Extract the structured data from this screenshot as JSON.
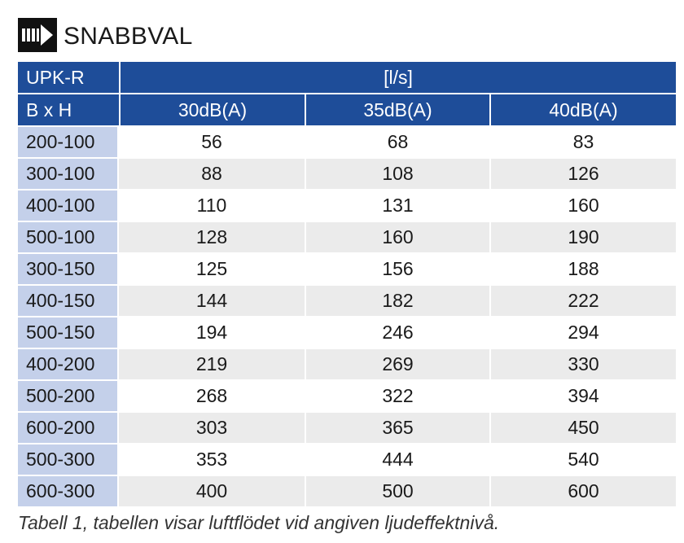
{
  "heading": {
    "logo_icon": "quick-select-arrow-icon",
    "title": "SNABBVAL"
  },
  "table": {
    "header_row1": {
      "model": "UPK-R",
      "unit": "[l/s]"
    },
    "header_row2": {
      "dim_label": "B x H",
      "levels": [
        "30dB(A)",
        "35dB(A)",
        "40dB(A)"
      ]
    },
    "rows": [
      {
        "size": "200-100",
        "v30": "56",
        "v35": "68",
        "v40": "83"
      },
      {
        "size": "300-100",
        "v30": "88",
        "v35": "108",
        "v40": "126"
      },
      {
        "size": "400-100",
        "v30": "110",
        "v35": "131",
        "v40": "160"
      },
      {
        "size": "500-100",
        "v30": "128",
        "v35": "160",
        "v40": "190"
      },
      {
        "size": "300-150",
        "v30": "125",
        "v35": "156",
        "v40": "188"
      },
      {
        "size": "400-150",
        "v30": "144",
        "v35": "182",
        "v40": "222"
      },
      {
        "size": "500-150",
        "v30": "194",
        "v35": "246",
        "v40": "294"
      },
      {
        "size": "400-200",
        "v30": "219",
        "v35": "269",
        "v40": "330"
      },
      {
        "size": "500-200",
        "v30": "268",
        "v35": "322",
        "v40": "394"
      },
      {
        "size": "600-200",
        "v30": "303",
        "v35": "365",
        "v40": "450"
      },
      {
        "size": "500-300",
        "v30": "353",
        "v35": "444",
        "v40": "540"
      },
      {
        "size": "600-300",
        "v30": "400",
        "v35": "500",
        "v40": "600"
      }
    ]
  },
  "caption": "Tabell 1, tabellen visar luftflödet vid angiven ljudeffektnivå.",
  "colors": {
    "header_blue": "#1e4d99",
    "dim_column": "#c4d0ea",
    "stripe_gray": "#ebebeb"
  }
}
